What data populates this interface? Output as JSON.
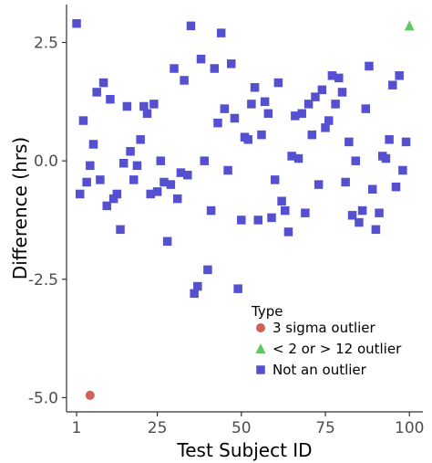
{
  "chart_data": {
    "type": "scatter",
    "title": "",
    "xlabel": "Test Subject ID",
    "ylabel": "Difference (hrs)",
    "xlim": [
      -2,
      104
    ],
    "ylim": [
      -5.3,
      3.3
    ],
    "x_ticks": [
      1,
      25,
      50,
      75,
      100
    ],
    "x_tick_labels": [
      "1",
      "25",
      "50",
      "75",
      "100"
    ],
    "y_ticks": [
      2.5,
      0.0,
      -2.5,
      -5.0
    ],
    "y_tick_labels": [
      "2.5",
      "0.0",
      "-2.5",
      "-5.0"
    ],
    "grid": false,
    "legend": {
      "title": "Type",
      "position": "bottom-right-inside"
    },
    "series": [
      {
        "name": "3 sigma outlier",
        "marker": "circle",
        "color": "#D2605A",
        "points": [
          [
            5,
            -4.95
          ]
        ]
      },
      {
        "name": "< 2 or > 12 outlier",
        "marker": "triangle",
        "color": "#5EC964",
        "points": [
          [
            100,
            2.85
          ]
        ]
      },
      {
        "name": "Not an outlier",
        "marker": "square",
        "color": "#5550D0",
        "points": [
          [
            1,
            2.9
          ],
          [
            2,
            -0.7
          ],
          [
            3,
            0.85
          ],
          [
            4,
            -0.45
          ],
          [
            5,
            -0.1
          ],
          [
            6,
            0.35
          ],
          [
            7,
            1.45
          ],
          [
            8,
            -0.4
          ],
          [
            9,
            1.65
          ],
          [
            10,
            -0.95
          ],
          [
            11,
            1.3
          ],
          [
            12,
            -0.8
          ],
          [
            13,
            -0.7
          ],
          [
            14,
            -1.45
          ],
          [
            15,
            -0.05
          ],
          [
            16,
            1.15
          ],
          [
            17,
            0.2
          ],
          [
            18,
            -0.4
          ],
          [
            19,
            -0.1
          ],
          [
            20,
            0.45
          ],
          [
            21,
            1.15
          ],
          [
            22,
            1.0
          ],
          [
            23,
            -0.7
          ],
          [
            24,
            1.2
          ],
          [
            25,
            -0.65
          ],
          [
            26,
            0.0
          ],
          [
            27,
            -0.45
          ],
          [
            28,
            -1.7
          ],
          [
            29,
            -0.5
          ],
          [
            30,
            1.95
          ],
          [
            31,
            -0.8
          ],
          [
            32,
            -0.25
          ],
          [
            33,
            1.7
          ],
          [
            34,
            -0.3
          ],
          [
            35,
            2.85
          ],
          [
            36,
            -2.8
          ],
          [
            37,
            -2.65
          ],
          [
            38,
            2.15
          ],
          [
            39,
            0.0
          ],
          [
            40,
            -2.3
          ],
          [
            41,
            -1.05
          ],
          [
            42,
            1.95
          ],
          [
            43,
            0.8
          ],
          [
            44,
            2.7
          ],
          [
            45,
            1.1
          ],
          [
            46,
            -0.2
          ],
          [
            47,
            2.05
          ],
          [
            48,
            0.9
          ],
          [
            49,
            -2.7
          ],
          [
            50,
            -1.25
          ],
          [
            51,
            0.5
          ],
          [
            52,
            0.45
          ],
          [
            53,
            1.2
          ],
          [
            54,
            1.55
          ],
          [
            55,
            -1.25
          ],
          [
            56,
            0.55
          ],
          [
            57,
            1.25
          ],
          [
            58,
            1.0
          ],
          [
            59,
            -1.2
          ],
          [
            60,
            -0.4
          ],
          [
            61,
            1.65
          ],
          [
            62,
            -0.85
          ],
          [
            63,
            -1.05
          ],
          [
            64,
            -1.5
          ],
          [
            65,
            0.1
          ],
          [
            66,
            0.95
          ],
          [
            67,
            0.05
          ],
          [
            68,
            1.0
          ],
          [
            69,
            -1.1
          ],
          [
            70,
            1.2
          ],
          [
            71,
            0.55
          ],
          [
            72,
            1.35
          ],
          [
            73,
            -0.5
          ],
          [
            74,
            1.5
          ],
          [
            75,
            0.7
          ],
          [
            76,
            0.85
          ],
          [
            77,
            1.8
          ],
          [
            78,
            1.2
          ],
          [
            79,
            1.75
          ],
          [
            80,
            1.45
          ],
          [
            81,
            -0.45
          ],
          [
            82,
            0.4
          ],
          [
            83,
            -1.15
          ],
          [
            84,
            0.0
          ],
          [
            85,
            -1.3
          ],
          [
            86,
            -1.05
          ],
          [
            87,
            1.1
          ],
          [
            88,
            2.0
          ],
          [
            89,
            -0.6
          ],
          [
            90,
            -1.45
          ],
          [
            91,
            -1.1
          ],
          [
            92,
            0.1
          ],
          [
            93,
            0.05
          ],
          [
            94,
            0.45
          ],
          [
            95,
            1.6
          ],
          [
            96,
            -0.55
          ],
          [
            97,
            1.8
          ],
          [
            98,
            -0.2
          ],
          [
            99,
            0.4
          ]
        ]
      }
    ]
  }
}
